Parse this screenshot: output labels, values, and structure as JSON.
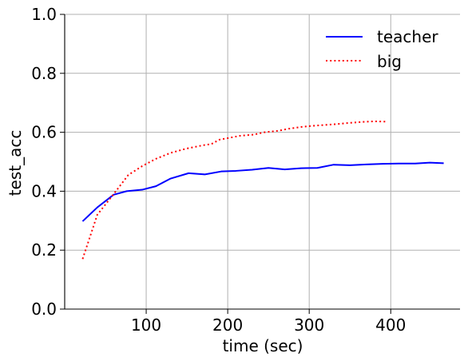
{
  "chart_data": {
    "type": "line",
    "title": "",
    "xlabel": "time (sec)",
    "ylabel": "test_acc",
    "xlim": [
      0,
      485
    ],
    "ylim": [
      0.0,
      1.0
    ],
    "x_ticks": [
      100,
      200,
      300,
      400
    ],
    "y_ticks": [
      0.0,
      0.2,
      0.4,
      0.6,
      0.8,
      1.0
    ],
    "x_tick_labels": [
      "100",
      "200",
      "300",
      "400"
    ],
    "y_tick_labels": [
      "0.0",
      "0.2",
      "0.4",
      "0.6",
      "0.8",
      "1.0"
    ],
    "grid": true,
    "legend_position": "top-right",
    "series": [
      {
        "name": "teacher",
        "color": "#0000ff",
        "style": "solid",
        "points": [
          [
            22,
            0.298
          ],
          [
            40,
            0.345
          ],
          [
            60,
            0.388
          ],
          [
            76,
            0.4
          ],
          [
            95,
            0.405
          ],
          [
            112,
            0.417
          ],
          [
            130,
            0.443
          ],
          [
            152,
            0.461
          ],
          [
            172,
            0.457
          ],
          [
            192,
            0.467
          ],
          [
            210,
            0.469
          ],
          [
            230,
            0.473
          ],
          [
            250,
            0.479
          ],
          [
            270,
            0.474
          ],
          [
            290,
            0.478
          ],
          [
            310,
            0.479
          ],
          [
            330,
            0.49
          ],
          [
            350,
            0.488
          ],
          [
            370,
            0.491
          ],
          [
            390,
            0.493
          ],
          [
            410,
            0.494
          ],
          [
            430,
            0.494
          ],
          [
            448,
            0.497
          ],
          [
            465,
            0.495
          ]
        ]
      },
      {
        "name": "big",
        "color": "#ff0000",
        "style": "dotted",
        "points": [
          [
            22,
            0.17
          ],
          [
            40,
            0.32
          ],
          [
            60,
            0.39
          ],
          [
            78,
            0.455
          ],
          [
            95,
            0.485
          ],
          [
            112,
            0.51
          ],
          [
            130,
            0.53
          ],
          [
            150,
            0.545
          ],
          [
            170,
            0.556
          ],
          [
            180,
            0.56
          ],
          [
            190,
            0.575
          ],
          [
            200,
            0.58
          ],
          [
            215,
            0.588
          ],
          [
            232,
            0.592
          ],
          [
            245,
            0.6
          ],
          [
            262,
            0.605
          ],
          [
            275,
            0.612
          ],
          [
            290,
            0.618
          ],
          [
            305,
            0.622
          ],
          [
            320,
            0.625
          ],
          [
            335,
            0.628
          ],
          [
            350,
            0.632
          ],
          [
            365,
            0.635
          ],
          [
            380,
            0.637
          ],
          [
            395,
            0.636
          ]
        ]
      }
    ]
  }
}
